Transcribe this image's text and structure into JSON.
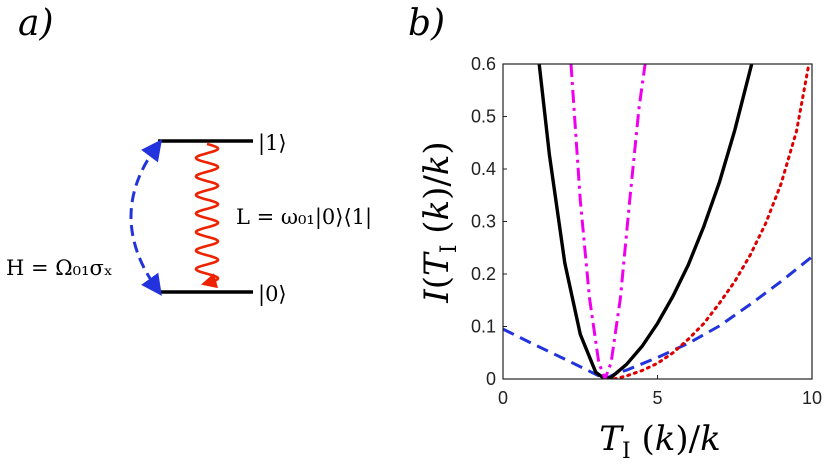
{
  "panel_a": {
    "label": "a)",
    "level_top": "|1⟩",
    "level_bottom": "|0⟩",
    "hamiltonian": "H  = Ω₀₁σₓ",
    "lindblad": "L = ω₀₁|0⟩⟨1|",
    "colors": {
      "drive": "#2233dd",
      "decay": "#ee2200",
      "levels": "#000000"
    }
  },
  "panel_b": {
    "label": "b)"
  },
  "chart_data": {
    "type": "line",
    "title": "",
    "xlabel": "T_I (k)/k",
    "ylabel": "I(T_I (k)/k)",
    "xlim": [
      0,
      10
    ],
    "ylim": [
      0,
      0.6
    ],
    "xticks": [
      "0",
      "5",
      "10"
    ],
    "yticks": [
      "0",
      "0.1",
      "0.2",
      "0.3",
      "0.4",
      "0.5",
      "0.6"
    ],
    "grid": false,
    "series": [
      {
        "name": "dashed-blue",
        "color": "#2233dd",
        "style": "dashed",
        "x": [
          0,
          1,
          2,
          3,
          3.3,
          3.6,
          4,
          5,
          6,
          7,
          8,
          9,
          10
        ],
        "y": [
          0.095,
          0.066,
          0.038,
          0.009,
          0.0,
          0.009,
          0.017,
          0.041,
          0.068,
          0.101,
          0.142,
          0.186,
          0.233
        ]
      },
      {
        "name": "solid-black",
        "color": "#000000",
        "style": "solid",
        "x": [
          1.17,
          1.5,
          2,
          2.5,
          3,
          3.3,
          3.5,
          4,
          4.5,
          5,
          5.5,
          6,
          6.5,
          7,
          7.5,
          8.05
        ],
        "y": [
          0.6,
          0.427,
          0.221,
          0.085,
          0.013,
          0.0,
          0.003,
          0.028,
          0.062,
          0.106,
          0.158,
          0.218,
          0.291,
          0.374,
          0.474,
          0.6
        ]
      },
      {
        "name": "dashdot-magenta",
        "color": "#ee00ee",
        "style": "dashdot",
        "x": [
          2.2,
          2.5,
          2.8,
          3.1,
          3.3,
          3.5,
          3.8,
          4.1,
          4.4,
          4.6
        ],
        "y": [
          0.6,
          0.34,
          0.154,
          0.031,
          0.0,
          0.031,
          0.154,
          0.34,
          0.516,
          0.6
        ]
      },
      {
        "name": "dotted-red",
        "color": "#dd0000",
        "style": "dotted",
        "x": [
          3.6,
          4,
          4.5,
          5,
          5.5,
          6,
          6.5,
          7,
          7.5,
          8,
          8.5,
          9,
          9.5,
          9.9
        ],
        "y": [
          0.0,
          0.006,
          0.016,
          0.03,
          0.05,
          0.076,
          0.106,
          0.144,
          0.186,
          0.236,
          0.296,
          0.372,
          0.472,
          0.6
        ]
      }
    ]
  }
}
